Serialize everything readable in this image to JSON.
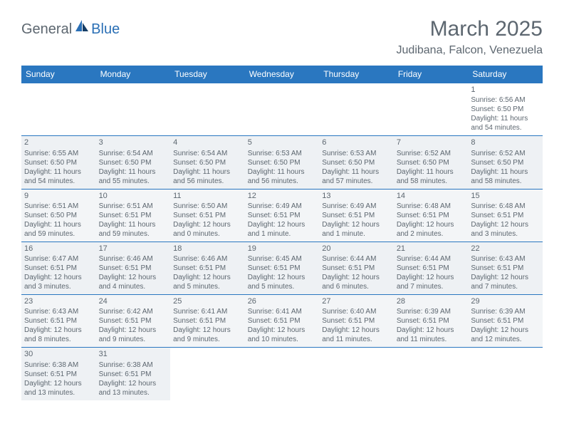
{
  "logo": {
    "part1": "General",
    "part2": "Blue"
  },
  "header": {
    "title": "March 2025",
    "location": "Judibana, Falcon, Venezuela"
  },
  "colors": {
    "header_bg": "#2a77c0",
    "header_text": "#ffffff",
    "body_text": "#5d6770",
    "shade_bg": "#eef1f4",
    "border": "#2a77c0"
  },
  "weekdays": [
    "Sunday",
    "Monday",
    "Tuesday",
    "Wednesday",
    "Thursday",
    "Friday",
    "Saturday"
  ],
  "weeks": [
    [
      null,
      null,
      null,
      null,
      null,
      null,
      {
        "n": "1",
        "sr": "Sunrise: 6:56 AM",
        "ss": "Sunset: 6:50 PM",
        "dl": "Daylight: 11 hours and 54 minutes."
      }
    ],
    [
      {
        "n": "2",
        "sr": "Sunrise: 6:55 AM",
        "ss": "Sunset: 6:50 PM",
        "dl": "Daylight: 11 hours and 54 minutes."
      },
      {
        "n": "3",
        "sr": "Sunrise: 6:54 AM",
        "ss": "Sunset: 6:50 PM",
        "dl": "Daylight: 11 hours and 55 minutes."
      },
      {
        "n": "4",
        "sr": "Sunrise: 6:54 AM",
        "ss": "Sunset: 6:50 PM",
        "dl": "Daylight: 11 hours and 56 minutes."
      },
      {
        "n": "5",
        "sr": "Sunrise: 6:53 AM",
        "ss": "Sunset: 6:50 PM",
        "dl": "Daylight: 11 hours and 56 minutes."
      },
      {
        "n": "6",
        "sr": "Sunrise: 6:53 AM",
        "ss": "Sunset: 6:50 PM",
        "dl": "Daylight: 11 hours and 57 minutes."
      },
      {
        "n": "7",
        "sr": "Sunrise: 6:52 AM",
        "ss": "Sunset: 6:50 PM",
        "dl": "Daylight: 11 hours and 58 minutes."
      },
      {
        "n": "8",
        "sr": "Sunrise: 6:52 AM",
        "ss": "Sunset: 6:50 PM",
        "dl": "Daylight: 11 hours and 58 minutes."
      }
    ],
    [
      {
        "n": "9",
        "sr": "Sunrise: 6:51 AM",
        "ss": "Sunset: 6:50 PM",
        "dl": "Daylight: 11 hours and 59 minutes."
      },
      {
        "n": "10",
        "sr": "Sunrise: 6:51 AM",
        "ss": "Sunset: 6:51 PM",
        "dl": "Daylight: 11 hours and 59 minutes."
      },
      {
        "n": "11",
        "sr": "Sunrise: 6:50 AM",
        "ss": "Sunset: 6:51 PM",
        "dl": "Daylight: 12 hours and 0 minutes."
      },
      {
        "n": "12",
        "sr": "Sunrise: 6:49 AM",
        "ss": "Sunset: 6:51 PM",
        "dl": "Daylight: 12 hours and 1 minute."
      },
      {
        "n": "13",
        "sr": "Sunrise: 6:49 AM",
        "ss": "Sunset: 6:51 PM",
        "dl": "Daylight: 12 hours and 1 minute."
      },
      {
        "n": "14",
        "sr": "Sunrise: 6:48 AM",
        "ss": "Sunset: 6:51 PM",
        "dl": "Daylight: 12 hours and 2 minutes."
      },
      {
        "n": "15",
        "sr": "Sunrise: 6:48 AM",
        "ss": "Sunset: 6:51 PM",
        "dl": "Daylight: 12 hours and 3 minutes."
      }
    ],
    [
      {
        "n": "16",
        "sr": "Sunrise: 6:47 AM",
        "ss": "Sunset: 6:51 PM",
        "dl": "Daylight: 12 hours and 3 minutes."
      },
      {
        "n": "17",
        "sr": "Sunrise: 6:46 AM",
        "ss": "Sunset: 6:51 PM",
        "dl": "Daylight: 12 hours and 4 minutes."
      },
      {
        "n": "18",
        "sr": "Sunrise: 6:46 AM",
        "ss": "Sunset: 6:51 PM",
        "dl": "Daylight: 12 hours and 5 minutes."
      },
      {
        "n": "19",
        "sr": "Sunrise: 6:45 AM",
        "ss": "Sunset: 6:51 PM",
        "dl": "Daylight: 12 hours and 5 minutes."
      },
      {
        "n": "20",
        "sr": "Sunrise: 6:44 AM",
        "ss": "Sunset: 6:51 PM",
        "dl": "Daylight: 12 hours and 6 minutes."
      },
      {
        "n": "21",
        "sr": "Sunrise: 6:44 AM",
        "ss": "Sunset: 6:51 PM",
        "dl": "Daylight: 12 hours and 7 minutes."
      },
      {
        "n": "22",
        "sr": "Sunrise: 6:43 AM",
        "ss": "Sunset: 6:51 PM",
        "dl": "Daylight: 12 hours and 7 minutes."
      }
    ],
    [
      {
        "n": "23",
        "sr": "Sunrise: 6:43 AM",
        "ss": "Sunset: 6:51 PM",
        "dl": "Daylight: 12 hours and 8 minutes."
      },
      {
        "n": "24",
        "sr": "Sunrise: 6:42 AM",
        "ss": "Sunset: 6:51 PM",
        "dl": "Daylight: 12 hours and 9 minutes."
      },
      {
        "n": "25",
        "sr": "Sunrise: 6:41 AM",
        "ss": "Sunset: 6:51 PM",
        "dl": "Daylight: 12 hours and 9 minutes."
      },
      {
        "n": "26",
        "sr": "Sunrise: 6:41 AM",
        "ss": "Sunset: 6:51 PM",
        "dl": "Daylight: 12 hours and 10 minutes."
      },
      {
        "n": "27",
        "sr": "Sunrise: 6:40 AM",
        "ss": "Sunset: 6:51 PM",
        "dl": "Daylight: 12 hours and 11 minutes."
      },
      {
        "n": "28",
        "sr": "Sunrise: 6:39 AM",
        "ss": "Sunset: 6:51 PM",
        "dl": "Daylight: 12 hours and 11 minutes."
      },
      {
        "n": "29",
        "sr": "Sunrise: 6:39 AM",
        "ss": "Sunset: 6:51 PM",
        "dl": "Daylight: 12 hours and 12 minutes."
      }
    ],
    [
      {
        "n": "30",
        "sr": "Sunrise: 6:38 AM",
        "ss": "Sunset: 6:51 PM",
        "dl": "Daylight: 12 hours and 13 minutes."
      },
      {
        "n": "31",
        "sr": "Sunrise: 6:38 AM",
        "ss": "Sunset: 6:51 PM",
        "dl": "Daylight: 12 hours and 13 minutes."
      },
      null,
      null,
      null,
      null,
      null
    ]
  ]
}
